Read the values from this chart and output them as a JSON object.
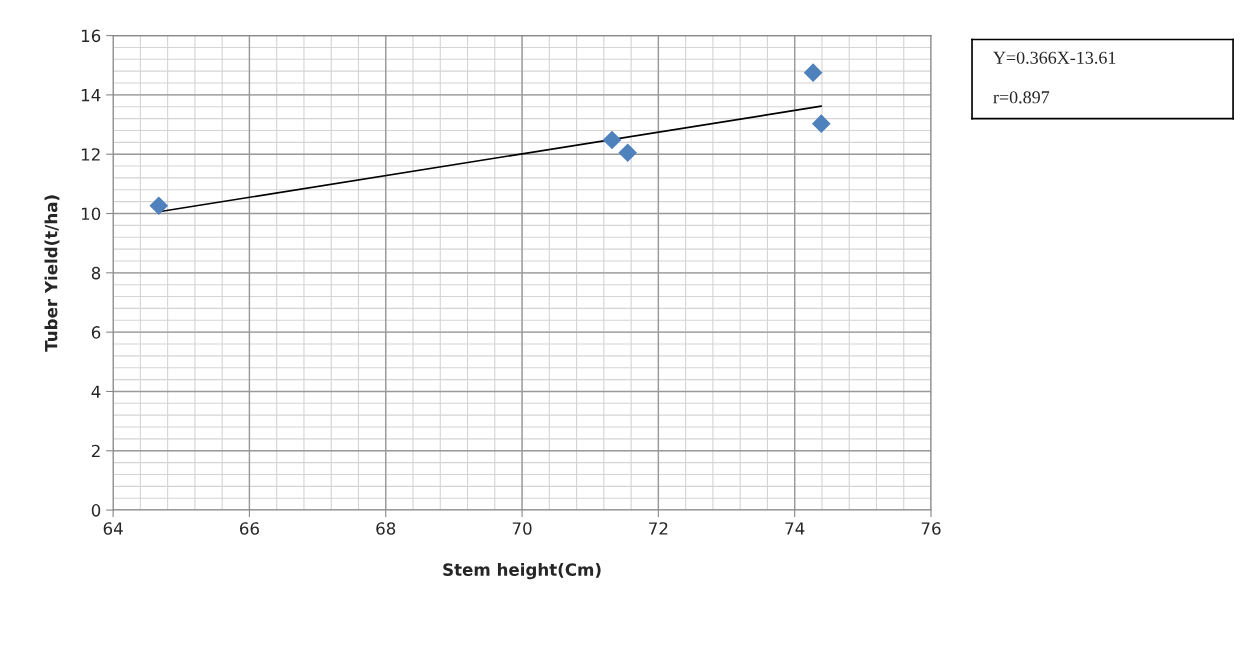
{
  "chart_data": {
    "type": "scatter",
    "xlabel": "Stem height(Cm)",
    "ylabel": "Tuber Yield(t/ha)",
    "series": [
      {
        "color": "#4f81bd",
        "marker": "diamond",
        "x": [
          64.67,
          71.32,
          71.55,
          74.27,
          74.39
        ],
        "values": [
          10.26,
          12.48,
          12.05,
          14.75,
          13.03
        ]
      },
      {
        "type": "line",
        "color": "#000000",
        "marker": "none",
        "line_style": "solid",
        "x": [
          64.67,
          74.39
        ],
        "values": [
          10.06,
          13.62
        ]
      }
    ],
    "xlim": [
      64,
      76
    ],
    "xticks": [
      64,
      66,
      68,
      70,
      72,
      74,
      76
    ],
    "ylim": [
      0,
      16
    ],
    "yticks": [
      0,
      2,
      4,
      6,
      8,
      10,
      12,
      14,
      16
    ],
    "grid": true,
    "legend": false,
    "annotations": [
      "Y=0.366X-13.61",
      "r=0.897"
    ]
  }
}
